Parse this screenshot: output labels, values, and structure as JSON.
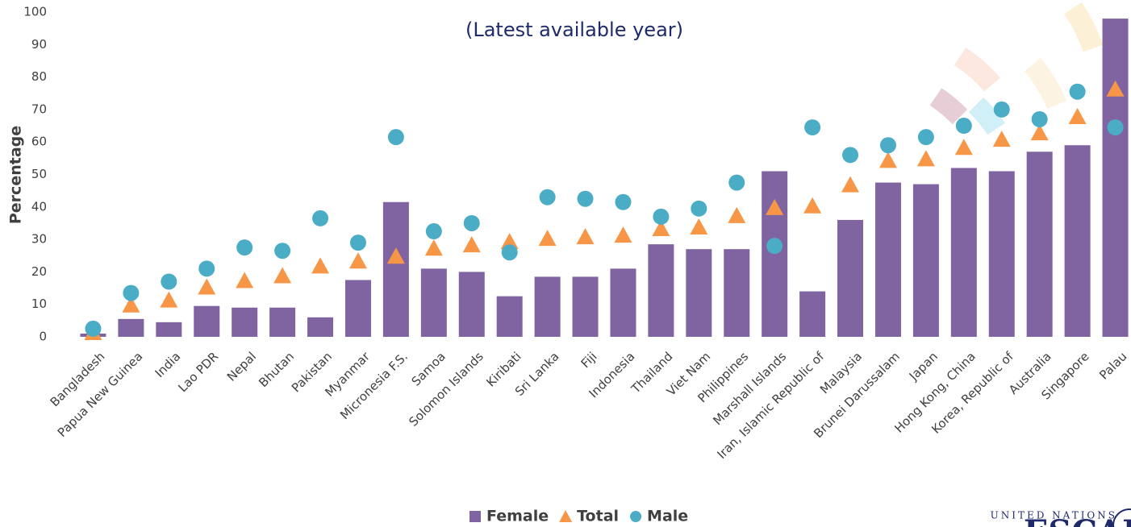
{
  "chart_data": {
    "type": "bar-scatter",
    "subtitle": "(Latest available year)",
    "y_label": "Percentage",
    "categories": [
      "Bangladesh",
      "Papua New Guinea",
      "India",
      "Lao PDR",
      "Nepal",
      "Bhutan",
      "Pakistan",
      "Myanmar",
      "Micronesia F.S.",
      "Samoa",
      "Solomon Islands",
      "Kiribati",
      "Sri Lanka",
      "Fiji",
      "Indonesia",
      "Thailand",
      "Viet Nam",
      "Philippines",
      "Marshall Islands",
      "Iran, Islamic Republic of",
      "Malaysia",
      "Brunei Darussalam",
      "Japan",
      "Hong Kong, China",
      "Korea, Republic of",
      "Australia",
      "Singapore",
      "Palau"
    ],
    "series": [
      {
        "name": "Female",
        "color": "#8064a2",
        "marker": "bar",
        "values": [
          1,
          5.5,
          4.5,
          9.5,
          9,
          9,
          6,
          17.5,
          41.5,
          21,
          20,
          12.5,
          18.5,
          18.5,
          21,
          28.5,
          27,
          27,
          51,
          14,
          36,
          47.5,
          47,
          52,
          51,
          57,
          59,
          98
        ]
      },
      {
        "name": "Total",
        "color": "#f79646",
        "marker": "triangle",
        "values": [
          1,
          9.5,
          11,
          15,
          17,
          18.5,
          21.5,
          23,
          24.5,
          27,
          28,
          29,
          30,
          30.5,
          31,
          33,
          33.5,
          37,
          39.5,
          40,
          46.5,
          54,
          54.5,
          58,
          60.5,
          62.5,
          67.5,
          76
        ]
      },
      {
        "name": "Male",
        "color": "#4bacc6",
        "marker": "circle",
        "values": [
          2.5,
          13.5,
          17,
          21,
          27.5,
          26.5,
          36.5,
          29,
          61.5,
          32.5,
          35,
          26,
          43,
          42.5,
          41.5,
          37,
          39.5,
          47.5,
          28,
          64.5,
          56,
          59,
          61.5,
          65,
          70,
          67,
          75.5,
          64.5
        ]
      }
    ],
    "ylim": [
      0,
      100
    ],
    "yticks": [
      0,
      10,
      20,
      30,
      40,
      50,
      60,
      70,
      80,
      90,
      100
    ],
    "legend": "bottom",
    "logo_text": "UNITED NATIONS",
    "logo_name": "ESCAP"
  }
}
